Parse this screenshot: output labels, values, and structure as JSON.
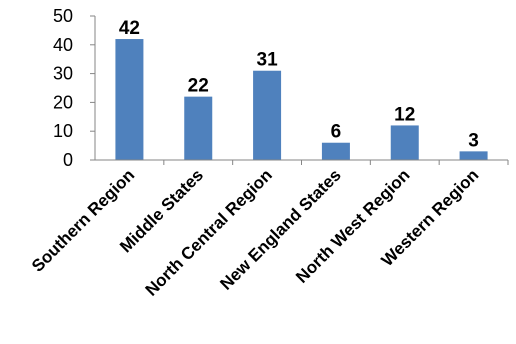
{
  "chart_data": {
    "type": "bar",
    "categories": [
      "Southern Region",
      "Middle States",
      "North Central Region",
      "New England States",
      "North West Region",
      "Western Region"
    ],
    "values": [
      42,
      22,
      31,
      6,
      12,
      3
    ],
    "title": "",
    "xlabel": "",
    "ylabel": "",
    "ylim": [
      0,
      50
    ],
    "yticks": [
      0,
      10,
      20,
      30,
      40,
      50
    ],
    "grid": false,
    "legend": "none",
    "data_labels": true,
    "bar_color": "#4f81bd"
  }
}
